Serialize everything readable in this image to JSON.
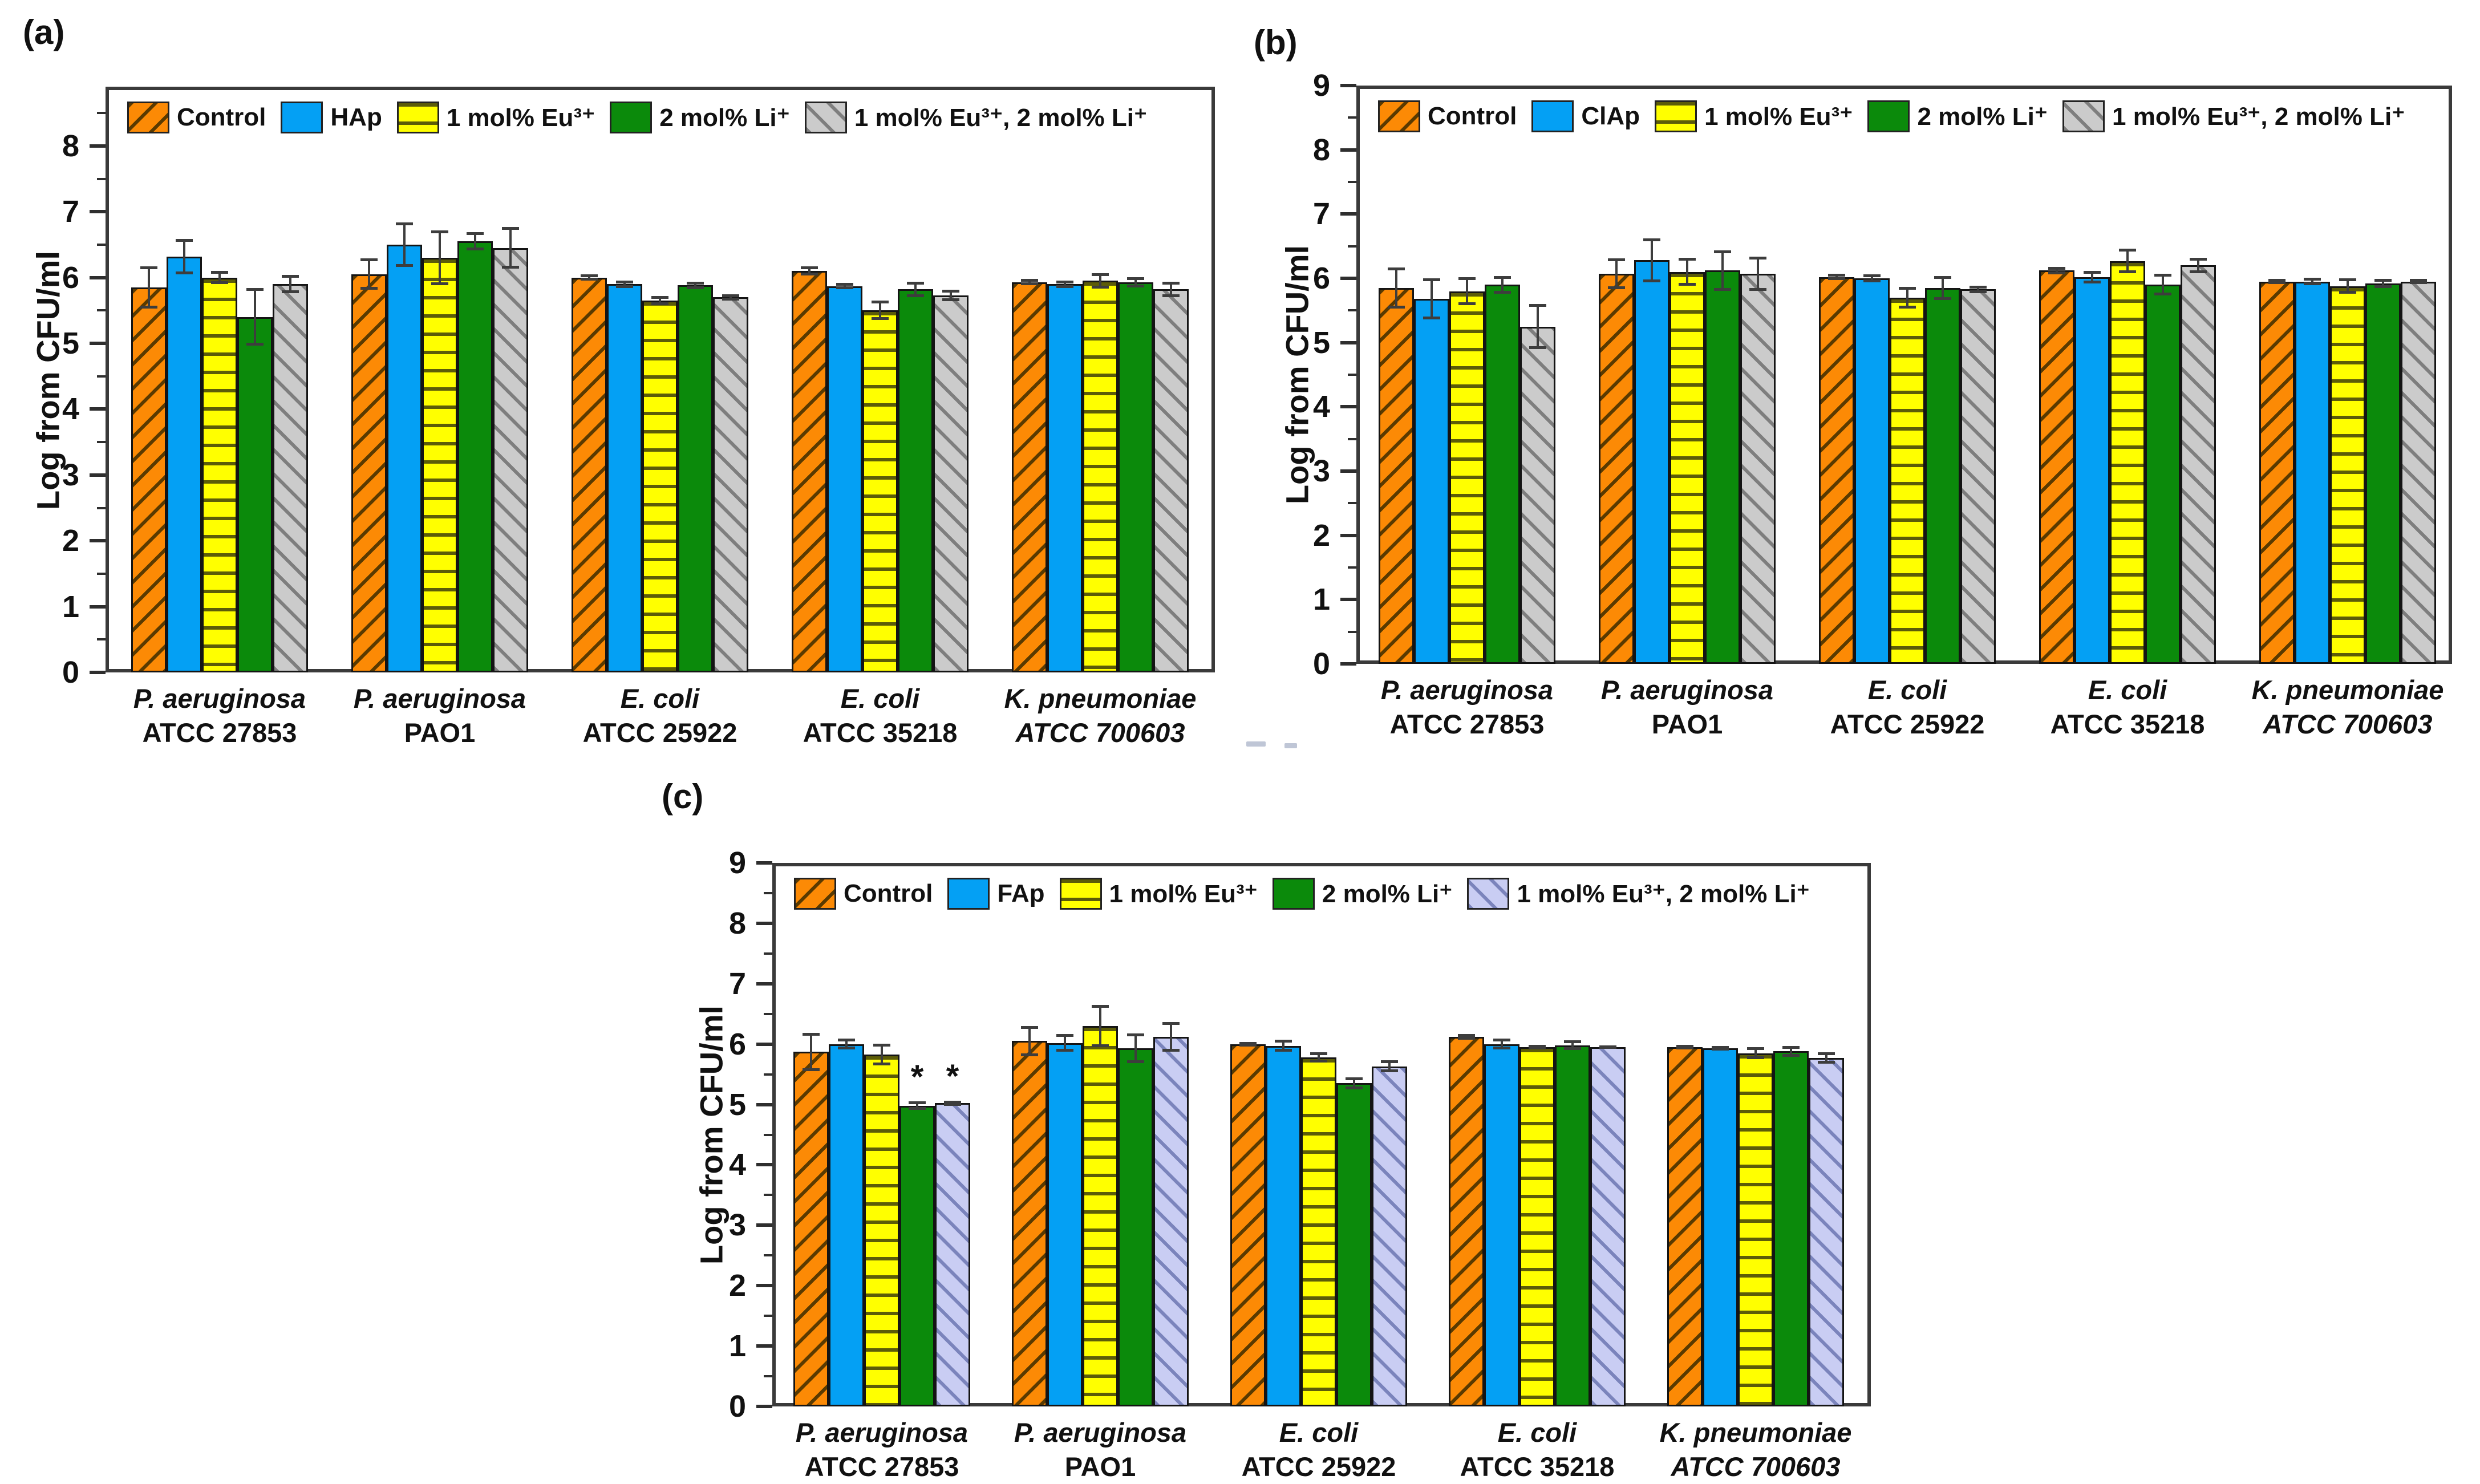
{
  "figure": {
    "background": "#ffffff",
    "panels": [
      {
        "id": "a",
        "label": "(a)"
      },
      {
        "id": "b",
        "label": "(b)"
      },
      {
        "id": "c",
        "label": "(c)"
      }
    ]
  },
  "series_styles": {
    "control": {
      "fill": "#FC8A05",
      "pattern": "diag-fwd",
      "line": "#5A3A00"
    },
    "apatite": {
      "fill": "#04A0F4",
      "pattern": "solid",
      "line": ""
    },
    "eu": {
      "fill": "#FFFF00",
      "pattern": "hlines",
      "line": "#5C5C08"
    },
    "li": {
      "fill": "#0B8A0B",
      "pattern": "solid",
      "line": ""
    },
    "combo_gray": {
      "fill": "#CBCBCB",
      "pattern": "diag-back",
      "line": "#7E7E7E"
    },
    "combo_lavender": {
      "fill": "#C9CDF3",
      "pattern": "diag-back",
      "line": "#7B84BC"
    }
  },
  "chart_data": [
    {
      "type": "bar",
      "panel": "a",
      "title": "",
      "xlabel": "",
      "ylabel": "Log from CFU/ml",
      "ylim": [
        0,
        8.9
      ],
      "yticks": [
        0,
        1,
        2,
        3,
        4,
        5,
        6,
        7,
        8
      ],
      "minor_tick_step": 0.5,
      "grid": false,
      "legend_position": "top-inside",
      "categories": [
        {
          "line1": "P. aeruginosa",
          "line2": "ATCC 27853",
          "italic2": false
        },
        {
          "line1": "P. aeruginosa",
          "line2": "PAO1",
          "italic2": false
        },
        {
          "line1": "E. coli",
          "line2": "ATCC 25922",
          "italic2": false
        },
        {
          "line1": "E. coli",
          "line2": "ATCC 35218",
          "italic2": false
        },
        {
          "line1": "K. pneumoniae",
          "line2": "ATCC 700603",
          "italic2": true
        }
      ],
      "series": [
        {
          "name": "Control",
          "style": "control",
          "values": [
            5.85,
            6.05,
            6.0,
            6.1,
            5.93
          ],
          "errors": [
            0.3,
            0.22,
            0.03,
            0.05,
            0.03
          ]
        },
        {
          "name": "HAp",
          "style": "apatite",
          "values": [
            6.32,
            6.5,
            5.9,
            5.87,
            5.9
          ],
          "errors": [
            0.25,
            0.32,
            0.04,
            0.03,
            0.04
          ]
        },
        {
          "name": "1 mol% Eu³⁺",
          "style": "eu",
          "values": [
            6.0,
            6.3,
            5.65,
            5.5,
            5.95
          ],
          "errors": [
            0.08,
            0.4,
            0.05,
            0.13,
            0.1
          ]
        },
        {
          "name": "2 mol% Li⁺",
          "style": "li",
          "values": [
            5.4,
            6.55,
            5.88,
            5.82,
            5.93
          ],
          "errors": [
            0.42,
            0.12,
            0.04,
            0.1,
            0.06
          ]
        },
        {
          "name": "1 mol% Eu³⁺, 2 mol% Li⁺",
          "style": "combo_gray",
          "values": [
            5.9,
            6.45,
            5.7,
            5.73,
            5.82
          ],
          "errors": [
            0.12,
            0.3,
            0.03,
            0.07,
            0.1
          ]
        }
      ],
      "annotations": []
    },
    {
      "type": "bar",
      "panel": "b",
      "title": "",
      "xlabel": "",
      "ylabel": "Log from CFU/ml",
      "ylim": [
        0,
        9
      ],
      "yticks": [
        0,
        1,
        2,
        3,
        4,
        5,
        6,
        7,
        8,
        9
      ],
      "minor_tick_step": 0.5,
      "grid": false,
      "legend_position": "top-inside",
      "categories": [
        {
          "line1": "P. aeruginosa",
          "line2": "ATCC 27853",
          "italic2": false
        },
        {
          "line1": "P. aeruginosa",
          "line2": "PAO1",
          "italic2": false
        },
        {
          "line1": "E. coli",
          "line2": "ATCC 25922",
          "italic2": false
        },
        {
          "line1": "E. coli",
          "line2": "ATCC 35218",
          "italic2": false
        },
        {
          "line1": "K. pneumoniae",
          "line2": "ATCC 700603",
          "italic2": true
        }
      ],
      "series": [
        {
          "name": "Control",
          "style": "control",
          "values": [
            5.85,
            6.07,
            6.02,
            6.12,
            5.95
          ],
          "errors": [
            0.3,
            0.22,
            0.03,
            0.04,
            0.02
          ]
        },
        {
          "name": "ClAp",
          "style": "apatite",
          "values": [
            5.68,
            6.28,
            6.0,
            6.02,
            5.95
          ],
          "errors": [
            0.3,
            0.32,
            0.04,
            0.08,
            0.04
          ]
        },
        {
          "name": "1 mol% Eu³⁺",
          "style": "eu",
          "values": [
            5.8,
            6.1,
            5.7,
            6.27,
            5.88
          ],
          "errors": [
            0.2,
            0.2,
            0.15,
            0.17,
            0.1
          ]
        },
        {
          "name": "2 mol% Li⁺",
          "style": "li",
          "values": [
            5.9,
            6.12,
            5.85,
            5.9,
            5.92
          ],
          "errors": [
            0.12,
            0.3,
            0.17,
            0.15,
            0.05
          ]
        },
        {
          "name": "1 mol% Eu³⁺, 2 mol% Li⁺",
          "style": "combo_gray",
          "values": [
            5.25,
            6.07,
            5.83,
            6.2,
            5.95
          ],
          "errors": [
            0.33,
            0.25,
            0.04,
            0.1,
            0.02
          ]
        }
      ],
      "annotations": []
    },
    {
      "type": "bar",
      "panel": "c",
      "title": "",
      "xlabel": "",
      "ylabel": "Log from CFU/ml",
      "ylim": [
        0,
        9
      ],
      "yticks": [
        0,
        1,
        2,
        3,
        4,
        5,
        6,
        7,
        8,
        9
      ],
      "minor_tick_step": 0.5,
      "grid": false,
      "legend_position": "top-inside",
      "categories": [
        {
          "line1": "P. aeruginosa",
          "line2": "ATCC 27853",
          "italic2": false
        },
        {
          "line1": "P. aeruginosa",
          "line2": "PAO1",
          "italic2": false
        },
        {
          "line1": "E. coli",
          "line2": "ATCC 25922",
          "italic2": false
        },
        {
          "line1": "E. coli",
          "line2": "ATCC 35218",
          "italic2": false
        },
        {
          "line1": "K. pneumoniae",
          "line2": "ATCC 700603",
          "italic2": true
        }
      ],
      "series": [
        {
          "name": "Control",
          "style": "control",
          "values": [
            5.87,
            6.05,
            6.0,
            6.12,
            5.95
          ],
          "errors": [
            0.3,
            0.23,
            0.02,
            0.03,
            0.02
          ]
        },
        {
          "name": "FAp",
          "style": "apatite",
          "values": [
            6.0,
            6.02,
            5.97,
            6.0,
            5.93
          ],
          "errors": [
            0.07,
            0.13,
            0.08,
            0.07,
            0.02
          ]
        },
        {
          "name": "1 mol% Eu³⁺",
          "style": "eu",
          "values": [
            5.83,
            6.3,
            5.78,
            5.95,
            5.85
          ],
          "errors": [
            0.16,
            0.33,
            0.07,
            0.02,
            0.08
          ]
        },
        {
          "name": "2 mol% Li⁺",
          "style": "li",
          "values": [
            4.98,
            5.93,
            5.35,
            5.98,
            5.88
          ],
          "errors": [
            0.05,
            0.23,
            0.08,
            0.06,
            0.07
          ]
        },
        {
          "name": "1 mol% Eu³⁺, 2 mol% Li⁺",
          "style": "combo_lavender",
          "values": [
            5.02,
            6.12,
            5.63,
            5.95,
            5.77
          ],
          "errors": [
            0.02,
            0.23,
            0.08,
            0.01,
            0.08
          ]
        }
      ],
      "annotations": [
        {
          "category": 0,
          "series": 3,
          "text": "*"
        },
        {
          "category": 0,
          "series": 4,
          "text": "*"
        }
      ]
    }
  ]
}
